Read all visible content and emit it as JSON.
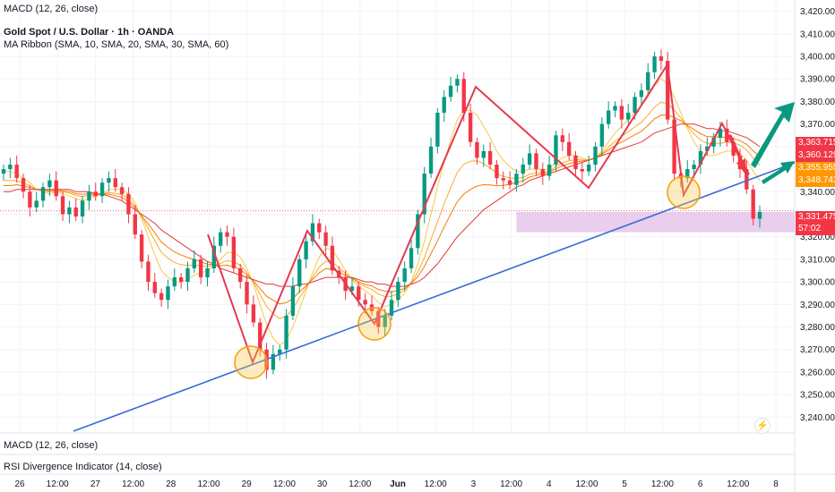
{
  "header": {
    "indicator_macd": "MACD (12, 26, close)",
    "symbol_title": "Gold Spot / U.S. Dollar · 1h · OANDA",
    "ma_ribbon": "MA Ribbon (SMA, 10, SMA, 20, SMA, 30, SMA, 60)"
  },
  "panes": {
    "macd_label": "MACD (12, 26, close)",
    "rsi_label": "RSI Divergence Indicator (14, close)"
  },
  "price_tags": [
    {
      "value": "3,363.715",
      "color": "#f23645"
    },
    {
      "value": "3,360.129",
      "color": "#f23645"
    },
    {
      "value": "3,355.955",
      "color": "#ff9800"
    },
    {
      "value": "3,348.743",
      "color": "#ff9800"
    },
    {
      "value": "3,331.475",
      "color": "#f23645"
    },
    {
      "value": "57:02",
      "color": "#f23645"
    }
  ],
  "chart_data": {
    "type": "candlestick",
    "title": "Gold Spot / U.S. Dollar · 1h · OANDA",
    "y_ticks": [
      3420,
      3410,
      3400,
      3390,
      3380,
      3370,
      3360,
      3350,
      3340,
      3330,
      3320,
      3310,
      3300,
      3290,
      3280,
      3270,
      3260,
      3250,
      3240
    ],
    "y_tick_labels": [
      "3,420.000",
      "3,410.000",
      "3,400.000",
      "3,390.000",
      "3,380.000",
      "3,370.000",
      "",
      "",
      "3,340.000",
      "",
      "3,320.000",
      "3,310.000",
      "3,300.000",
      "3,290.000",
      "3,280.000",
      "3,270.000",
      "3,260.000",
      "3,250.000",
      "3,240.000"
    ],
    "ylim": [
      3233,
      3425
    ],
    "x_labels": [
      "26",
      "12:00",
      "27",
      "12:00",
      "28",
      "12:00",
      "29",
      "12:00",
      "30",
      "12:00",
      "Jun",
      "12:00",
      "3",
      "12:00",
      "4",
      "12:00",
      "5",
      "12:00",
      "6",
      "12:00",
      "8"
    ],
    "current_price": 3331.475,
    "series": [
      {
        "name": "close",
        "values": [
          3350,
          3352,
          3346,
          3340,
          3333,
          3336,
          3342,
          3345,
          3338,
          3330,
          3333,
          3329,
          3336,
          3340,
          3338,
          3344,
          3346,
          3342,
          3339,
          3330,
          3321,
          3309,
          3300,
          3295,
          3292,
          3298,
          3302,
          3300,
          3306,
          3310,
          3302,
          3306,
          3316,
          3322,
          3320,
          3306,
          3300,
          3290,
          3282,
          3270,
          3261,
          3268,
          3270,
          3285,
          3298,
          3310,
          3318,
          3326,
          3322,
          3316,
          3305,
          3302,
          3296,
          3298,
          3292,
          3290,
          3287,
          3280,
          3285,
          3292,
          3300,
          3306,
          3315,
          3330,
          3348,
          3360,
          3375,
          3382,
          3387,
          3390,
          3375,
          3362,
          3355,
          3358,
          3352,
          3346,
          3345,
          3343,
          3348,
          3352,
          3357,
          3350,
          3347,
          3352,
          3365,
          3362,
          3356,
          3350,
          3349,
          3352,
          3360,
          3370,
          3376,
          3378,
          3372,
          3375,
          3382,
          3385,
          3393,
          3400,
          3398,
          3372,
          3348,
          3346,
          3350,
          3352,
          3358,
          3360,
          3364,
          3368,
          3362,
          3356,
          3350,
          3341,
          3328,
          3331
        ]
      },
      {
        "name": "MA 10",
        "values": [
          3349,
          3349,
          3348,
          3346,
          3344,
          3341,
          3340,
          3339,
          3340,
          3339,
          3338,
          3337,
          3336,
          3337,
          3338,
          3339,
          3341,
          3341,
          3341,
          3339,
          3335,
          3328,
          3320,
          3312,
          3305,
          3302,
          3300,
          3300,
          3301,
          3303,
          3304,
          3305,
          3307,
          3310,
          3313,
          3313,
          3311,
          3306,
          3299,
          3290,
          3281,
          3275,
          3272,
          3274,
          3280,
          3288,
          3296,
          3304,
          3311,
          3315,
          3314,
          3310,
          3305,
          3301,
          3298,
          3296,
          3294,
          3291,
          3289,
          3290,
          3292,
          3295,
          3300,
          3308,
          3318,
          3330,
          3342,
          3353,
          3363,
          3372,
          3376,
          3376,
          3374,
          3369,
          3364,
          3358,
          3354,
          3351,
          3349,
          3349,
          3350,
          3350,
          3350,
          3350,
          3353,
          3355,
          3356,
          3356,
          3355,
          3354,
          3355,
          3358,
          3362,
          3366,
          3369,
          3372,
          3375,
          3378,
          3382,
          3387,
          3390,
          3388,
          3382,
          3375,
          3368,
          3362,
          3358,
          3356,
          3356,
          3357,
          3358,
          3358,
          3357,
          3354,
          3349,
          3345
        ]
      },
      {
        "name": "MA 60",
        "values": [
          3340,
          3340,
          3341,
          3341,
          3341,
          3341,
          3341,
          3341,
          3341,
          3341,
          3341,
          3340,
          3340,
          3340,
          3339,
          3339,
          3338,
          3337,
          3336,
          3334,
          3332,
          3330,
          3328,
          3326,
          3323,
          3321,
          3319,
          3317,
          3315,
          3313,
          3311,
          3309,
          3308,
          3306,
          3305,
          3304,
          3303,
          3302,
          3301,
          3300,
          3299,
          3299,
          3298,
          3298,
          3298,
          3299,
          3299,
          3300,
          3301,
          3302,
          3302,
          3302,
          3302,
          3302,
          3301,
          3300,
          3300,
          3299,
          3299,
          3298,
          3298,
          3298,
          3299,
          3300,
          3302,
          3305,
          3308,
          3312,
          3316,
          3320,
          3323,
          3326,
          3329,
          3332,
          3334,
          3336,
          3338,
          3340,
          3342,
          3343,
          3345,
          3346,
          3347,
          3348,
          3349,
          3350,
          3351,
          3352,
          3353,
          3354,
          3355,
          3356,
          3357,
          3358,
          3359,
          3360,
          3361,
          3362,
          3364,
          3366,
          3367,
          3368,
          3369,
          3370,
          3370,
          3370,
          3369,
          3368,
          3368,
          3367,
          3367,
          3366,
          3365,
          3364,
          3362,
          3360
        ]
      }
    ],
    "resistance_zone": [
      3322,
      3331
    ],
    "trendline": {
      "from": [
        0,
        3232
      ],
      "to": [
        115,
        3349
      ]
    },
    "grid": true
  }
}
